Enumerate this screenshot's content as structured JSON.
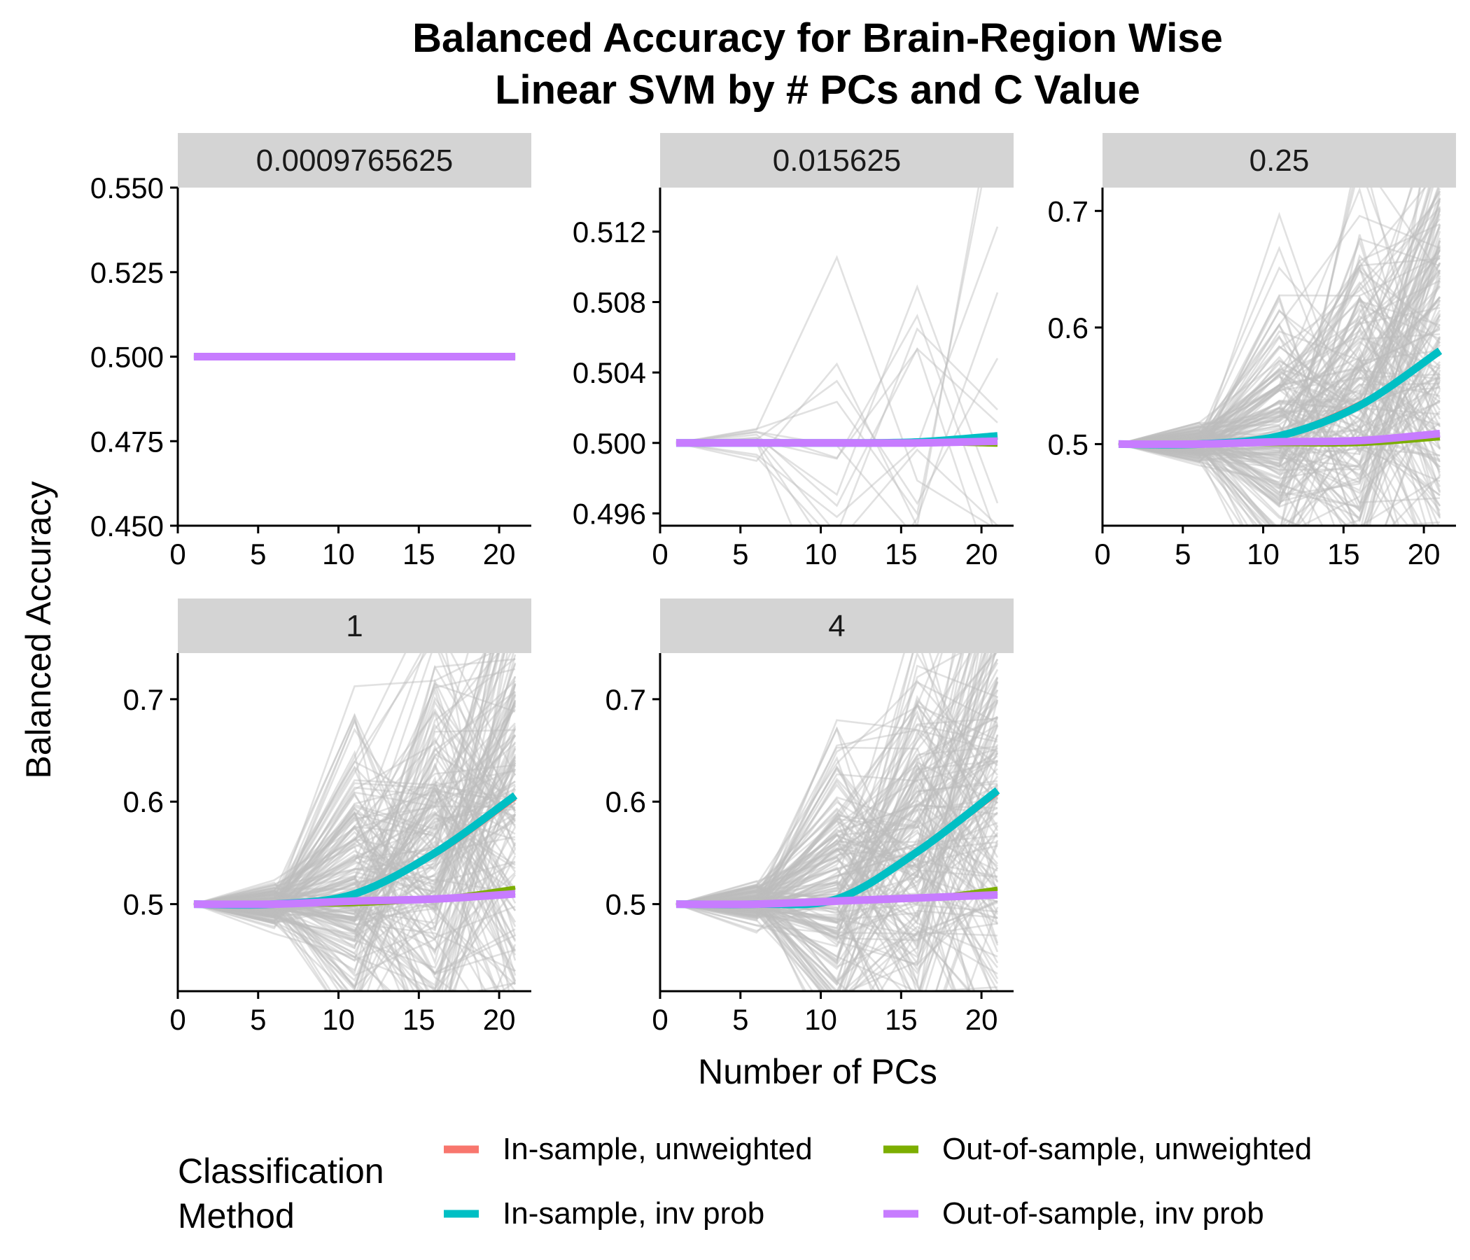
{
  "chart_data": {
    "type": "line",
    "title": [
      "Balanced Accuracy for Brain-Region Wise",
      "Linear SVM by # PCs and C Value"
    ],
    "xlabel": "Number of PCs",
    "ylabel": "Balanced Accuracy",
    "legend": {
      "title": [
        "Classification",
        "Method"
      ],
      "position": "bottom",
      "items": [
        {
          "label": "In-sample, unweighted",
          "color": "#F8766D"
        },
        {
          "label": "Out-of-sample, unweighted",
          "color": "#7CAE00"
        },
        {
          "label": "In-sample, inv prob",
          "color": "#00BFC4"
        },
        {
          "label": "Out-of-sample, inv prob",
          "color": "#C77CFF"
        }
      ]
    },
    "background_line_color": "#bdbdbd",
    "panels": [
      {
        "strip": "0.0009765625",
        "xlim": [
          0,
          22
        ],
        "xticks": [
          "0",
          "5",
          "10",
          "15",
          "20"
        ],
        "ylim": [
          0.45,
          0.55
        ],
        "yticks": [
          "0.450",
          "0.475",
          "0.500",
          "0.525",
          "0.550"
        ],
        "background": {
          "n": 0,
          "spread": 0,
          "seed": 11
        },
        "series": [
          {
            "name": "In-sample, unweighted",
            "x": [
              1,
              6,
              11,
              16,
              21
            ],
            "y": [
              0.5,
              0.5,
              0.5,
              0.5,
              0.5
            ]
          },
          {
            "name": "Out-of-sample, unweighted",
            "x": [
              1,
              6,
              11,
              16,
              21
            ],
            "y": [
              0.5,
              0.5,
              0.5,
              0.5,
              0.5
            ]
          },
          {
            "name": "In-sample, inv prob",
            "x": [
              1,
              6,
              11,
              16,
              21
            ],
            "y": [
              0.5,
              0.5,
              0.5,
              0.5,
              0.5
            ]
          },
          {
            "name": "Out-of-sample, inv prob",
            "x": [
              1,
              6,
              11,
              16,
              21
            ],
            "y": [
              0.5,
              0.5,
              0.5,
              0.5,
              0.5
            ]
          }
        ]
      },
      {
        "strip": "0.015625",
        "xlim": [
          0,
          22
        ],
        "xticks": [
          "0",
          "5",
          "10",
          "15",
          "20"
        ],
        "ylim": [
          0.4953,
          0.5145
        ],
        "yticks": [
          "0.496",
          "0.500",
          "0.504",
          "0.508",
          "0.512"
        ],
        "background": {
          "n": 14,
          "spread": 0.0075,
          "seed": 23
        },
        "series": [
          {
            "name": "In-sample, unweighted",
            "x": [
              1,
              6,
              11,
              16,
              21
            ],
            "y": [
              0.5,
              0.5,
              0.5,
              0.50005,
              0.5003
            ]
          },
          {
            "name": "Out-of-sample, unweighted",
            "x": [
              1,
              6,
              11,
              16,
              21
            ],
            "y": [
              0.5,
              0.5,
              0.5,
              0.5,
              0.4999
            ]
          },
          {
            "name": "In-sample, inv prob",
            "x": [
              1,
              6,
              11,
              16,
              21
            ],
            "y": [
              0.5,
              0.5,
              0.5,
              0.50005,
              0.5004
            ]
          },
          {
            "name": "Out-of-sample, inv prob",
            "x": [
              1,
              6,
              11,
              16,
              21
            ],
            "y": [
              0.5,
              0.5,
              0.5,
              0.5,
              0.5001
            ]
          }
        ]
      },
      {
        "strip": "0.25",
        "xlim": [
          0,
          22
        ],
        "xticks": [
          "0",
          "5",
          "10",
          "15",
          "20"
        ],
        "ylim": [
          0.43,
          0.72
        ],
        "yticks": [
          "0.5",
          "0.6",
          "0.7"
        ],
        "background": {
          "n": 170,
          "spread": 0.1,
          "seed": 37
        },
        "series": [
          {
            "name": "In-sample, unweighted",
            "x": [
              1,
              6,
              11,
              16,
              21
            ],
            "y": [
              0.5,
              0.5,
              0.508,
              0.535,
              0.578
            ]
          },
          {
            "name": "Out-of-sample, unweighted",
            "x": [
              1,
              6,
              11,
              16,
              21
            ],
            "y": [
              0.5,
              0.5,
              0.5,
              0.5,
              0.505
            ]
          },
          {
            "name": "In-sample, inv prob",
            "x": [
              1,
              6,
              11,
              16,
              21
            ],
            "y": [
              0.5,
              0.5,
              0.507,
              0.533,
              0.58
            ]
          },
          {
            "name": "Out-of-sample, inv prob",
            "x": [
              1,
              6,
              11,
              16,
              21
            ],
            "y": [
              0.5,
              0.5,
              0.502,
              0.503,
              0.509
            ]
          }
        ]
      },
      {
        "strip": "1",
        "xlim": [
          0,
          22
        ],
        "xticks": [
          "0",
          "5",
          "10",
          "15",
          "20"
        ],
        "ylim": [
          0.415,
          0.745
        ],
        "yticks": [
          "0.5",
          "0.6",
          "0.7"
        ],
        "background": {
          "n": 170,
          "spread": 0.12,
          "seed": 53
        },
        "series": [
          {
            "name": "In-sample, unweighted",
            "x": [
              1,
              6,
              11,
              16,
              21
            ],
            "y": [
              0.5,
              0.5,
              0.51,
              0.548,
              0.603
            ]
          },
          {
            "name": "Out-of-sample, unweighted",
            "x": [
              1,
              6,
              11,
              16,
              21
            ],
            "y": [
              0.5,
              0.5,
              0.5,
              0.505,
              0.516
            ]
          },
          {
            "name": "In-sample, inv prob",
            "x": [
              1,
              6,
              11,
              16,
              21
            ],
            "y": [
              0.5,
              0.5,
              0.51,
              0.55,
              0.606
            ]
          },
          {
            "name": "Out-of-sample, inv prob",
            "x": [
              1,
              6,
              11,
              16,
              21
            ],
            "y": [
              0.5,
              0.5,
              0.503,
              0.505,
              0.51
            ]
          }
        ]
      },
      {
        "strip": "4",
        "xlim": [
          0,
          22
        ],
        "xticks": [
          "0",
          "5",
          "10",
          "15",
          "20"
        ],
        "ylim": [
          0.415,
          0.745
        ],
        "yticks": [
          "0.5",
          "0.6",
          "0.7"
        ],
        "background": {
          "n": 170,
          "spread": 0.12,
          "seed": 71
        },
        "series": [
          {
            "name": "In-sample, unweighted",
            "x": [
              1,
              6,
              11,
              16,
              21
            ],
            "y": [
              0.5,
              0.5,
              0.505,
              0.55,
              0.608
            ]
          },
          {
            "name": "Out-of-sample, unweighted",
            "x": [
              1,
              6,
              11,
              16,
              21
            ],
            "y": [
              0.5,
              0.5,
              0.502,
              0.505,
              0.515
            ]
          },
          {
            "name": "In-sample, inv prob",
            "x": [
              1,
              6,
              11,
              16,
              21
            ],
            "y": [
              0.5,
              0.5,
              0.505,
              0.551,
              0.611
            ]
          },
          {
            "name": "Out-of-sample, inv prob",
            "x": [
              1,
              6,
              11,
              16,
              21
            ],
            "y": [
              0.5,
              0.5,
              0.503,
              0.506,
              0.509
            ]
          }
        ]
      }
    ]
  }
}
